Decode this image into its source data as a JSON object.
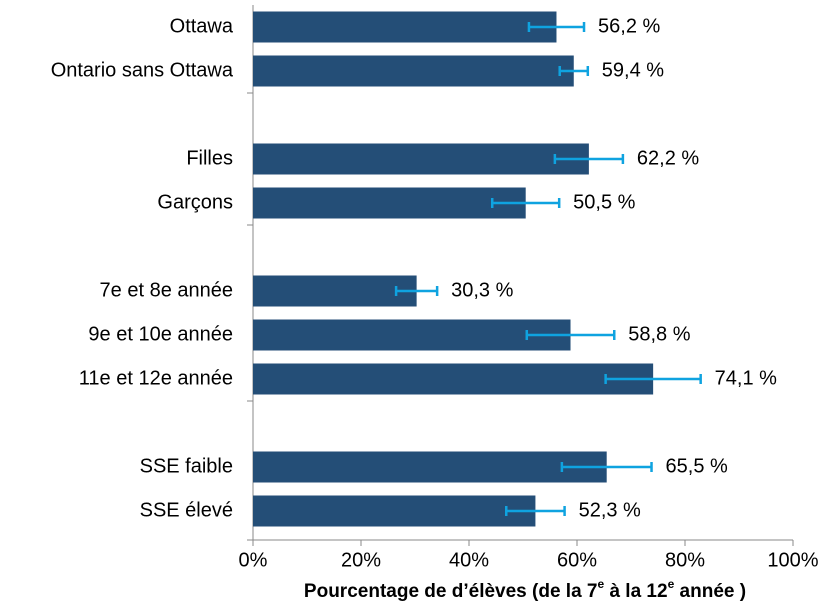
{
  "chart_data": {
    "type": "bar",
    "orientation": "horizontal",
    "categories": [
      "Ottawa",
      "Ontario sans Ottawa",
      null,
      "Filles",
      "Garçons",
      null,
      "7e et 8e année",
      "9e et 10e année",
      "11e et 12e année",
      null,
      "SSE faible",
      "SSE élevé"
    ],
    "values": [
      56.2,
      59.4,
      null,
      62.2,
      50.5,
      null,
      30.3,
      58.8,
      74.1,
      null,
      65.5,
      52.3
    ],
    "value_labels": [
      "56,2 %",
      "59,4 %",
      null,
      "62,2 %",
      "50,5 %",
      null,
      "30,3 %",
      "58,8 %",
      "74,1 %",
      null,
      "65,5 %",
      "52,3 %"
    ],
    "errors": [
      5.1,
      2.6,
      null,
      6.3,
      6.2,
      null,
      3.8,
      8.1,
      8.8,
      null,
      8.3,
      5.4
    ],
    "color": "#244e77",
    "error_color": "#0fa3e0",
    "xlim": [
      0,
      100
    ],
    "xticks": [
      {
        "value": 0,
        "label": "0%"
      },
      {
        "value": 20,
        "label": "20%"
      },
      {
        "value": 40,
        "label": "40%"
      },
      {
        "value": 60,
        "label": "60%"
      },
      {
        "value": 80,
        "label": "80%"
      },
      {
        "value": 100,
        "label": "100%"
      }
    ],
    "x_label": [
      "Pourcentage de d’élèves (de la 7",
      "e",
      " à la 12",
      "e",
      " année )"
    ]
  }
}
